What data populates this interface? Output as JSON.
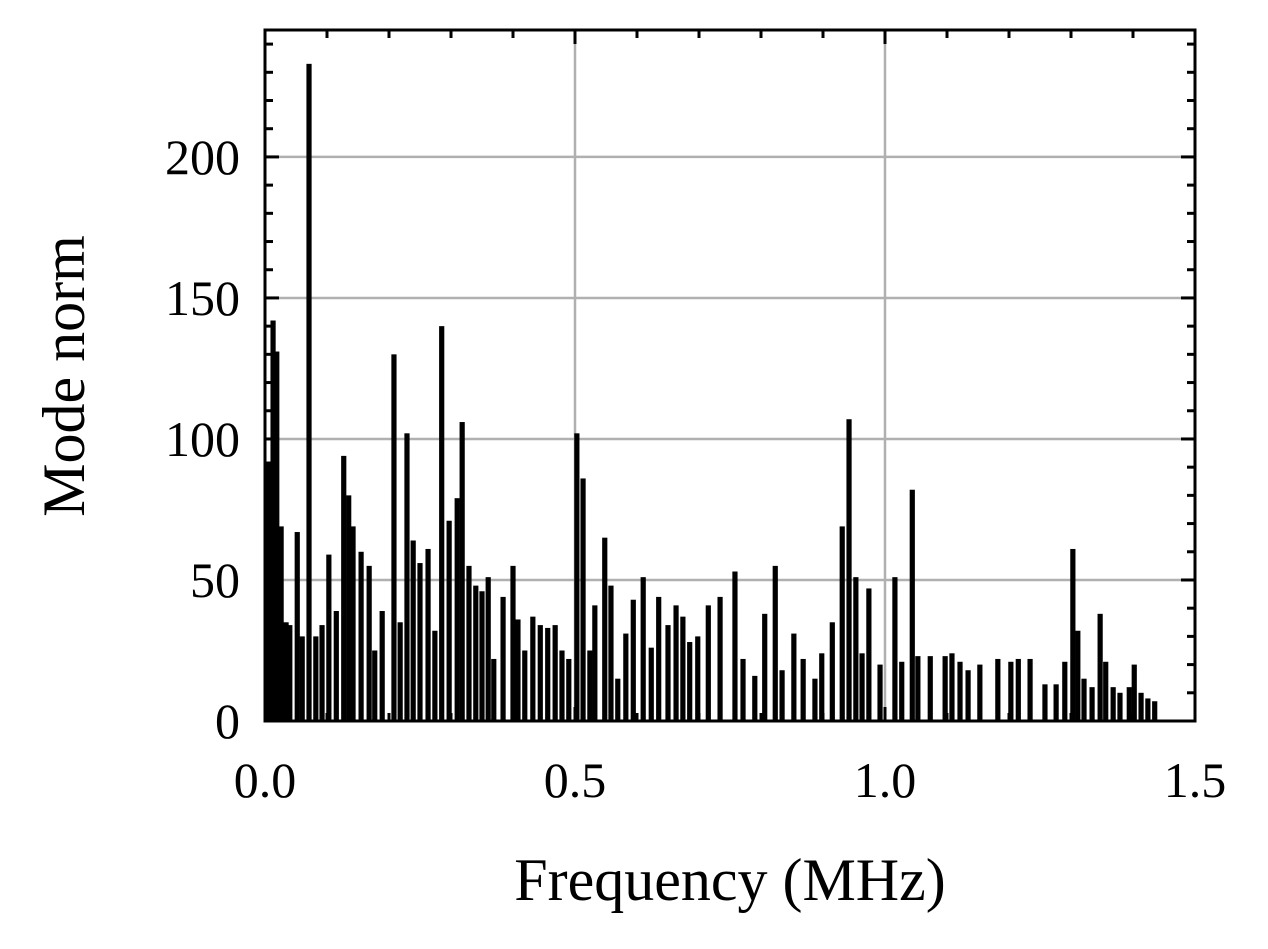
{
  "chart_data": {
    "type": "bar",
    "xlabel": "Frequency (MHz)",
    "ylabel": "Mode norm",
    "x": [
      0.005,
      0.013,
      0.019,
      0.026,
      0.034,
      0.04,
      0.052,
      0.06,
      0.071,
      0.082,
      0.092,
      0.103,
      0.115,
      0.127,
      0.135,
      0.142,
      0.155,
      0.168,
      0.177,
      0.189,
      0.208,
      0.218,
      0.229,
      0.239,
      0.25,
      0.263,
      0.274,
      0.285,
      0.297,
      0.31,
      0.318,
      0.329,
      0.34,
      0.35,
      0.36,
      0.369,
      0.384,
      0.4,
      0.408,
      0.419,
      0.432,
      0.444,
      0.456,
      0.468,
      0.479,
      0.49,
      0.503,
      0.513,
      0.524,
      0.532,
      0.548,
      0.558,
      0.569,
      0.582,
      0.594,
      0.61,
      0.623,
      0.635,
      0.65,
      0.663,
      0.674,
      0.685,
      0.698,
      0.715,
      0.734,
      0.758,
      0.771,
      0.79,
      0.806,
      0.823,
      0.834,
      0.853,
      0.868,
      0.887,
      0.898,
      0.915,
      0.931,
      0.942,
      0.953,
      0.963,
      0.974,
      0.992,
      1.016,
      1.027,
      1.044,
      1.053,
      1.073,
      1.097,
      1.108,
      1.121,
      1.134,
      1.153,
      1.182,
      1.203,
      1.215,
      1.234,
      1.258,
      1.276,
      1.29,
      1.303,
      1.311,
      1.321,
      1.334,
      1.347,
      1.356,
      1.368,
      1.379,
      1.394,
      1.402,
      1.413,
      1.424,
      1.435
    ],
    "values": [
      92,
      142,
      131,
      69,
      35,
      34,
      67,
      30,
      233,
      30,
      34,
      59,
      39,
      94,
      80,
      69,
      60,
      55,
      25,
      39,
      130,
      35,
      102,
      64,
      56,
      61,
      32,
      140,
      71,
      79,
      106,
      55,
      48,
      46,
      51,
      22,
      44,
      55,
      36,
      25,
      37,
      34,
      33,
      34,
      25,
      22,
      102,
      86,
      25,
      41,
      65,
      48,
      15,
      31,
      43,
      51,
      26,
      44,
      34,
      41,
      37,
      28,
      30,
      41,
      44,
      53,
      22,
      16,
      38,
      55,
      18,
      31,
      22,
      15,
      24,
      35,
      69,
      107,
      51,
      24,
      47,
      20,
      51,
      21,
      82,
      23,
      23,
      23,
      24,
      21,
      18,
      20,
      22,
      21,
      22,
      22,
      13,
      13,
      21,
      61,
      32,
      15,
      12,
      38,
      21,
      12,
      10,
      12,
      20,
      10,
      8,
      7
    ],
    "color": "#000000",
    "xlim": [
      0,
      1.5
    ],
    "ylim": [
      0,
      245
    ],
    "xticks": [
      {
        "value": 0,
        "label": "0.0"
      },
      {
        "value": 0.5,
        "label": "0.5"
      },
      {
        "value": 1,
        "label": "1.0"
      },
      {
        "value": 1.5,
        "label": "1.5"
      }
    ],
    "yticks": [
      0,
      50,
      100,
      150,
      200
    ],
    "xminor": [
      0.1,
      0.2,
      0.3,
      0.4,
      0.6,
      0.7,
      0.8,
      0.9,
      1.1,
      1.2,
      1.3,
      1.4
    ],
    "yminor": [
      10,
      20,
      30,
      40,
      60,
      70,
      80,
      90,
      110,
      120,
      130,
      140,
      160,
      170,
      180,
      190,
      210,
      220,
      230,
      240
    ],
    "grid": true
  }
}
